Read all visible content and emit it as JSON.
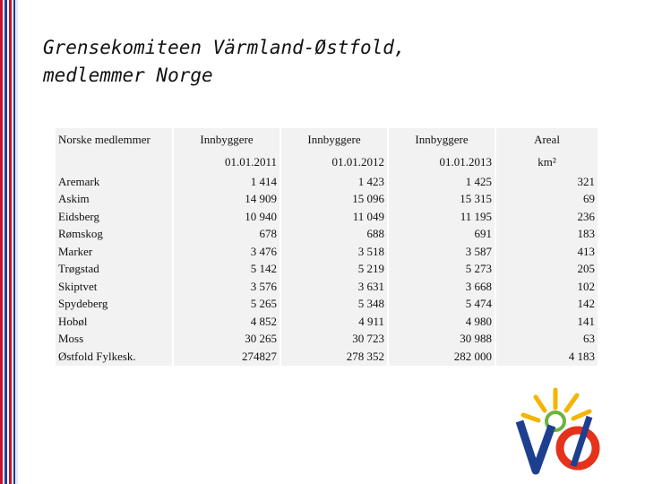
{
  "title": {
    "line1": "Grensekomiteen Värmland-Østfold,",
    "line2": "medlemmer Norge"
  },
  "table": {
    "header": [
      "Norske medlemmer",
      "Innbyggere",
      "Innbyggere",
      "Innbyggere",
      "Areal"
    ],
    "subheader": [
      "01.01.2011",
      "01.01.2012",
      "01.01.2013",
      "km²"
    ],
    "rows": [
      [
        "Aremark",
        "1 414",
        "1 423",
        "1 425",
        "321"
      ],
      [
        "Askim",
        "14 909",
        "15 096",
        "15 315",
        "69"
      ],
      [
        "Eidsberg",
        "10 940",
        "11 049",
        "11 195",
        "236"
      ],
      [
        "Rømskog",
        "678",
        "688",
        "691",
        "183"
      ],
      [
        "Marker",
        "3 476",
        "3 518",
        "3 587",
        "413"
      ],
      [
        "Trøgstad",
        "5 142",
        "5 219",
        "5 273",
        "205"
      ],
      [
        "Skiptvet",
        "3 576",
        "3 631",
        "3 668",
        "102"
      ],
      [
        "Spydeberg",
        "5 265",
        "5 348",
        "5 474",
        "142"
      ],
      [
        "Hobøl",
        "4 852",
        "4 911",
        "4 980",
        "141"
      ],
      [
        "Moss",
        "30 265",
        "30 723",
        "30 988",
        "63"
      ],
      [
        "Østfold Fylkesk.",
        "274827",
        "278 352",
        "282 000",
        "4 183"
      ]
    ]
  }
}
